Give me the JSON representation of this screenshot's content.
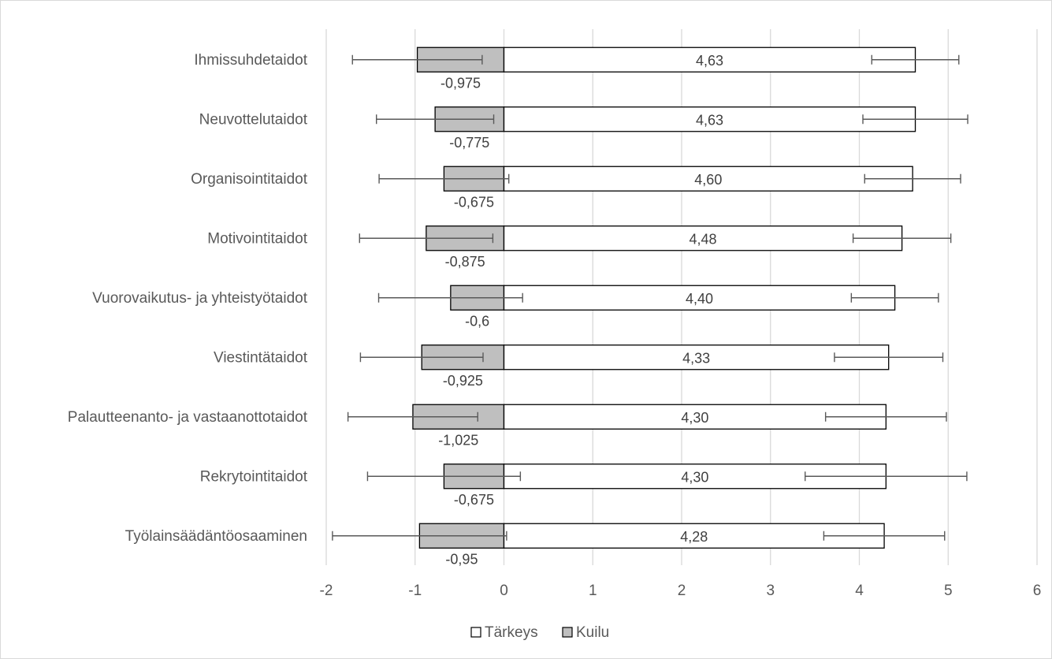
{
  "chart_data": {
    "type": "bar",
    "orientation": "horizontal",
    "categories": [
      "Ihmissuhdetaidot",
      "Neuvottelutaidot",
      "Organisointitaidot",
      "Motivointitaidot",
      "Vuorovaikutus- ja yhteistyötaidot",
      "Viestintätaidot",
      "Palautteenanto- ja vastaanottotaidot",
      "Rekrytointitaidot",
      "Työlainsäädäntöosaaminen"
    ],
    "series": [
      {
        "name": "Tärkeys",
        "color": "#ffffff",
        "values": [
          4.63,
          4.63,
          4.6,
          4.48,
          4.4,
          4.33,
          4.3,
          4.3,
          4.28
        ],
        "labels": [
          "4,63",
          "4,63",
          "4,60",
          "4,48",
          "4,40",
          "4,33",
          "4,30",
          "4,30",
          "4,28"
        ],
        "error": [
          0.49,
          0.59,
          0.54,
          0.55,
          0.49,
          0.61,
          0.68,
          0.91,
          0.68
        ]
      },
      {
        "name": "Kuilu",
        "color": "#bfbfbf",
        "values": [
          -0.975,
          -0.775,
          -0.675,
          -0.875,
          -0.6,
          -0.925,
          -1.025,
          -0.675,
          -0.95
        ],
        "labels": [
          "-0,975",
          "-0,775",
          "-0,675",
          "-0,875",
          "-0,6",
          "-0,925",
          "-1,025",
          "-0,675",
          "-0,95"
        ],
        "error": [
          0.73,
          0.66,
          0.73,
          0.75,
          0.81,
          0.69,
          0.73,
          0.86,
          0.98
        ]
      }
    ],
    "xlim": [
      -2,
      6
    ],
    "xticks": [
      "-2",
      "-1",
      "0",
      "1",
      "2",
      "3",
      "4",
      "5",
      "6"
    ],
    "grid": true,
    "legend": "bottom-center",
    "title": "",
    "xlabel": "",
    "ylabel": ""
  }
}
